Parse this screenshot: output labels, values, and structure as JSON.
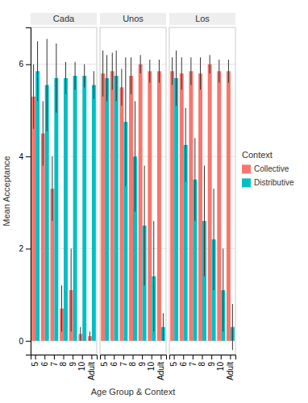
{
  "chart_data": [
    {
      "type": "bar",
      "title": "Cada",
      "y_label": "Mean Acceptance",
      "x_label": "Age Group & Context",
      "categories": [
        "5",
        "6",
        "7",
        "8",
        "9",
        "10",
        "Adult"
      ],
      "series": [
        {
          "name": "Collective",
          "color": "#F8766D",
          "values": [
            5.3,
            4.5,
            3.3,
            0.7,
            1.1,
            0.15,
            0.1
          ],
          "errors": [
            0.7,
            0.7,
            0.7,
            0.5,
            0.9,
            0.15,
            0.1
          ]
        },
        {
          "name": "Distributive",
          "color": "#00BFC4",
          "values": [
            5.85,
            5.55,
            5.7,
            5.7,
            5.75,
            5.75,
            5.55
          ],
          "errors": [
            0.65,
            1.0,
            0.75,
            0.35,
            0.3,
            0.25,
            0.3
          ]
        }
      ],
      "ylim": [
        -0.3,
        6.8
      ],
      "yticks": [
        0,
        2,
        4,
        6
      ],
      "grid": true
    },
    {
      "type": "bar",
      "title": "Unos",
      "categories": [
        "5",
        "6",
        "7",
        "8",
        "9",
        "10",
        "Adult"
      ],
      "series": [
        {
          "name": "Collective",
          "color": "#F8766D",
          "values": [
            5.8,
            5.85,
            5.5,
            5.75,
            6.0,
            5.85,
            5.85
          ],
          "errors": [
            0.5,
            0.4,
            0.4,
            0.4,
            0.2,
            0.25,
            0.25
          ]
        },
        {
          "name": "Distributive",
          "color": "#00BFC4",
          "values": [
            5.7,
            5.75,
            4.75,
            4.0,
            2.5,
            1.4,
            0.3
          ],
          "errors": [
            0.5,
            0.55,
            1.4,
            1.2,
            1.3,
            1.2,
            0.3
          ]
        }
      ],
      "ylim": [
        -0.3,
        6.8
      ],
      "yticks": [
        0,
        2,
        4,
        6
      ],
      "grid": true,
      "tick_labels": "x"
    },
    {
      "type": "bar",
      "title": "Los",
      "legend_title": "Context",
      "legend": "right",
      "categories": [
        "5",
        "6",
        "7",
        "8",
        "9",
        "10",
        "Adult"
      ],
      "series": [
        {
          "name": "Collective",
          "color": "#F8766D",
          "values": [
            5.85,
            5.8,
            5.85,
            5.8,
            6.0,
            5.85,
            5.85
          ],
          "errors": [
            0.3,
            0.35,
            0.3,
            0.35,
            0.2,
            0.25,
            0.25
          ]
        },
        {
          "name": "Distributive",
          "color": "#00BFC4",
          "values": [
            5.7,
            4.25,
            3.5,
            2.6,
            2.2,
            1.1,
            0.3
          ],
          "errors": [
            0.6,
            0.8,
            0.9,
            1.2,
            1.1,
            0.9,
            0.5
          ]
        }
      ],
      "ylim": [
        -0.3,
        6.8
      ],
      "yticks": [
        0,
        2,
        4,
        6
      ],
      "grid": true,
      "tick_labels": "x"
    }
  ]
}
